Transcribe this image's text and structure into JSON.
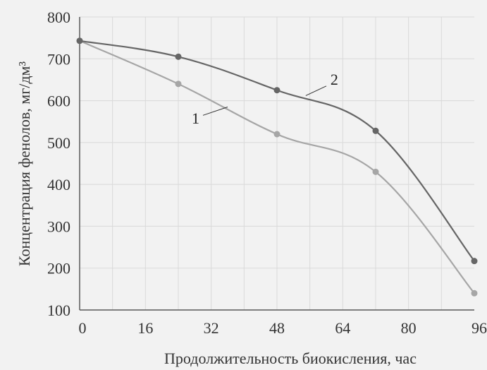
{
  "chart_data": {
    "type": "line",
    "xlabel": "Продолжительность биокисления, час",
    "ylabel": "Концентрация фенолов, мг/дм³",
    "xlim": [
      0,
      96
    ],
    "ylim": [
      100,
      800
    ],
    "xticks": [
      "0",
      "16",
      "32",
      "48",
      "64",
      "80",
      "96"
    ],
    "yticks": [
      "100",
      "200",
      "300",
      "400",
      "500",
      "600",
      "700",
      "800"
    ],
    "grid": true,
    "series": [
      {
        "name": "1",
        "color": "#a6a6a6",
        "x": [
          0,
          24,
          48,
          72,
          96
        ],
        "y": [
          743,
          640,
          520,
          430,
          140
        ]
      },
      {
        "name": "2",
        "color": "#666666",
        "x": [
          0,
          24,
          48,
          72,
          96
        ],
        "y": [
          743,
          705,
          625,
          528,
          217
        ]
      }
    ]
  }
}
